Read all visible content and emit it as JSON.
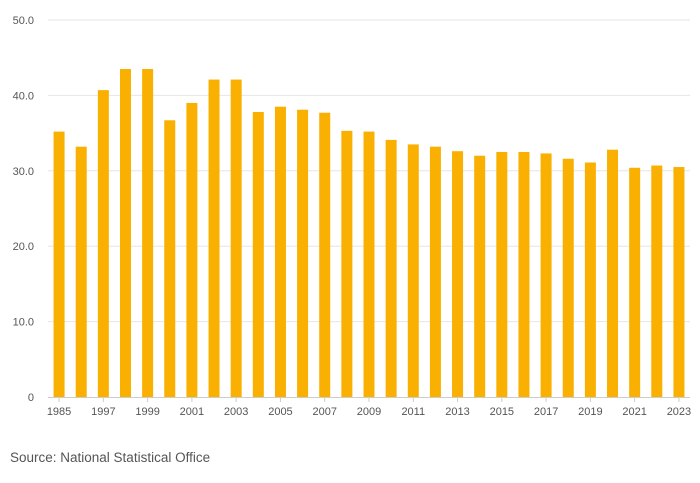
{
  "chart_data": {
    "type": "bar",
    "categories": [
      "1985",
      "1996",
      "1997",
      "1998",
      "1999",
      "2000",
      "2001",
      "2002",
      "2003",
      "2004",
      "2005",
      "2006",
      "2007",
      "2008",
      "2009",
      "2010",
      "2011",
      "2012",
      "2013",
      "2014",
      "2015",
      "2016",
      "2017",
      "2018",
      "2019",
      "2020",
      "2021",
      "2022",
      "2023"
    ],
    "x_tick_labels": [
      "1985",
      "1997",
      "1999",
      "2001",
      "2003",
      "2005",
      "2007",
      "2009",
      "2011",
      "2013",
      "2015",
      "2017",
      "2019",
      "2021",
      "2023"
    ],
    "values": [
      35.2,
      33.2,
      40.7,
      43.5,
      43.5,
      36.7,
      39.0,
      42.1,
      42.1,
      37.8,
      38.5,
      38.1,
      37.7,
      35.3,
      35.2,
      34.1,
      33.5,
      33.2,
      32.6,
      32.0,
      32.5,
      32.5,
      32.3,
      31.6,
      31.1,
      32.8,
      30.4,
      30.7,
      30.5
    ],
    "y_ticks": [
      "0",
      "10.0",
      "20.0",
      "30.0",
      "40.0",
      "50.0"
    ],
    "ylim": [
      0,
      50
    ],
    "bar_color": "#F9B000",
    "grid": true
  },
  "source_text": "Source: National Statistical Office"
}
